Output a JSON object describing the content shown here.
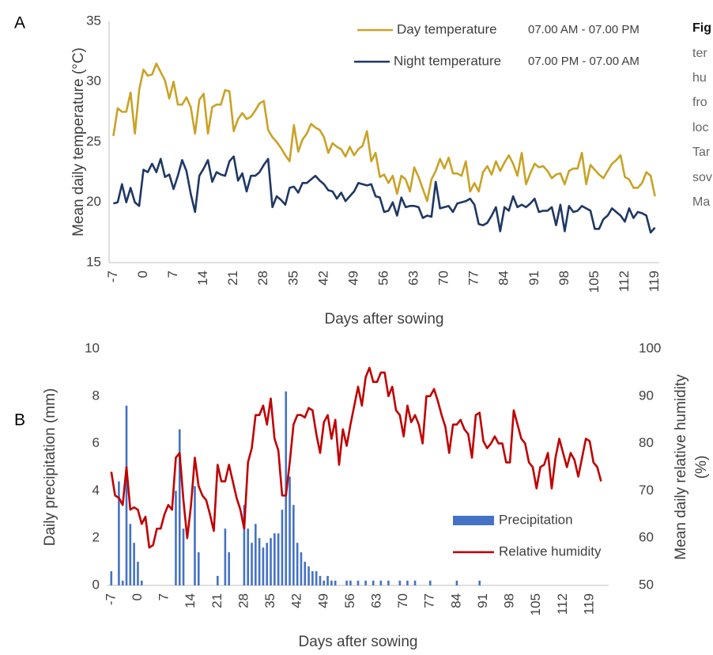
{
  "chart_data": [
    {
      "type": "line",
      "panel_label": "A",
      "y_label": "Mean daily temperature (°C)",
      "x_label": "Days after sowing",
      "xlim": [
        -8,
        120
      ],
      "ylim": [
        15,
        35
      ],
      "xticks": [
        -7,
        0,
        7,
        14,
        21,
        28,
        35,
        42,
        49,
        56,
        63,
        70,
        77,
        84,
        91,
        98,
        105,
        112,
        119
      ],
      "yticks": [
        15,
        20,
        25,
        30,
        35
      ],
      "x": [
        -7,
        -6,
        -5,
        -4,
        -3,
        -2,
        -1,
        0,
        1,
        2,
        3,
        4,
        5,
        6,
        7,
        8,
        9,
        10,
        11,
        12,
        13,
        14,
        15,
        16,
        17,
        18,
        19,
        20,
        21,
        22,
        23,
        24,
        25,
        26,
        27,
        28,
        29,
        30,
        31,
        32,
        33,
        34,
        35,
        36,
        37,
        38,
        39,
        40,
        41,
        42,
        43,
        44,
        45,
        46,
        47,
        48,
        49,
        50,
        51,
        52,
        53,
        54,
        55,
        56,
        57,
        58,
        59,
        60,
        61,
        62,
        63,
        64,
        65,
        66,
        67,
        68,
        69,
        70,
        71,
        72,
        73,
        74,
        75,
        76,
        77,
        78,
        79,
        80,
        81,
        82,
        83,
        84,
        85,
        86,
        87,
        88,
        89,
        90,
        91,
        92,
        93,
        94,
        95,
        96,
        97,
        98,
        99,
        100,
        101,
        102,
        103,
        104,
        105,
        106,
        107,
        108,
        109,
        110,
        111,
        112,
        113,
        114,
        115,
        116,
        117,
        118,
        119
      ],
      "series": [
        {
          "name": "Day temperature",
          "note": "07.00 AM - 07.00 PM",
          "color": "#c9a227",
          "type": "line",
          "values": [
            25.5,
            27.8,
            27.5,
            27.5,
            29.1,
            25.7,
            29.3,
            31,
            30.5,
            30.6,
            31.5,
            30.8,
            30.1,
            28.6,
            30,
            28.1,
            28.1,
            28.7,
            27.9,
            25.7,
            28.5,
            29,
            25.7,
            27.9,
            28.1,
            28.1,
            29.3,
            29.2,
            25.9,
            26.9,
            27.4,
            26.9,
            27.1,
            27.6,
            28.2,
            28.4,
            26,
            25.4,
            25,
            24.5,
            23.9,
            23.4,
            26.4,
            24.2,
            25.2,
            25.7,
            26.5,
            26.2,
            26,
            25.4,
            24.1,
            24.9,
            24.6,
            24.4,
            23.8,
            24.6,
            23.9,
            24.4,
            24.7,
            25.9,
            23.4,
            24.1,
            22.1,
            22.3,
            21.6,
            22.2,
            20.7,
            22.2,
            21.9,
            20.9,
            22.9,
            22.1,
            21.1,
            20.1,
            21.9,
            22.6,
            23.6,
            22.8,
            23.7,
            22.4,
            22.4,
            22.2,
            23.4,
            20.9,
            21.6,
            20.9,
            22.5,
            23,
            22.3,
            23.4,
            22.6,
            23.3,
            23.9,
            23.2,
            22.2,
            24.1,
            21.5,
            22.4,
            23.2,
            22.9,
            23,
            22.6,
            22,
            22.3,
            22.4,
            21.5,
            22.6,
            22.8,
            22.8,
            24.1,
            21.5,
            23.1,
            22.7,
            22.3,
            22,
            22.6,
            23.2,
            23.5,
            23.9,
            22.1,
            21.9,
            21.2,
            21.2,
            21.6,
            22.5,
            22.2,
            20.5
          ]
        },
        {
          "name": "Night temperature",
          "note": "07.00 PM - 07.00 AM",
          "color": "#1f3864",
          "type": "line",
          "values": [
            19.9,
            20,
            21.5,
            20,
            21.2,
            20,
            19.7,
            22.7,
            22.5,
            23.2,
            22.5,
            23.6,
            22.1,
            22.3,
            21.1,
            22.2,
            23.5,
            22.6,
            20.7,
            19.2,
            22.2,
            22.8,
            23.5,
            21.7,
            22.5,
            22.3,
            22.2,
            23.4,
            23.8,
            21.8,
            22.4,
            20.9,
            22.2,
            22.2,
            22.5,
            23.1,
            23.6,
            19.6,
            20.5,
            20.2,
            19.8,
            21.2,
            21.3,
            20.8,
            21.6,
            21.6,
            21.9,
            22.2,
            21.8,
            21.5,
            21,
            20.9,
            20.3,
            20.8,
            20.1,
            20.5,
            20.9,
            21.6,
            21.5,
            21.4,
            21.5,
            20.5,
            20.4,
            19.2,
            19.3,
            20,
            18.9,
            20.4,
            19.6,
            19.7,
            19.7,
            19.6,
            18.7,
            18.9,
            18.8,
            21.7,
            19.5,
            19.6,
            19.7,
            19.2,
            19.9,
            20,
            20.1,
            20.3,
            19.8,
            18.2,
            18.1,
            18.3,
            18.9,
            19.6,
            17.6,
            19.6,
            19.3,
            20.5,
            19.6,
            19.8,
            19.6,
            19.9,
            20.3,
            19.2,
            19.3,
            19.3,
            19.6,
            18.1,
            19.8,
            17.6,
            19.7,
            19.2,
            19.3,
            19.7,
            19.5,
            19.3,
            17.8,
            17.8,
            18.6,
            18.9,
            19.5,
            19.2,
            18.9,
            18.4,
            19.5,
            18.7,
            19.2,
            19.1,
            18.9,
            17.5,
            17.9
          ]
        }
      ]
    },
    {
      "type": "combo",
      "panel_label": "B",
      "y_label": "Daily precipitation (mm)",
      "y2_label": [
        "Mean daily relative humidity",
        "(%)"
      ],
      "x_label": "Days after sowing",
      "xlim": [
        -8,
        124
      ],
      "ylim": [
        0,
        10
      ],
      "y2lim": [
        50,
        100
      ],
      "xticks": [
        -7,
        0,
        7,
        14,
        21,
        28,
        35,
        42,
        49,
        56,
        63,
        70,
        77,
        84,
        91,
        98,
        105,
        112,
        119
      ],
      "yticks": [
        0,
        2,
        4,
        6,
        8,
        10
      ],
      "y2ticks": [
        50,
        60,
        70,
        80,
        90,
        100
      ],
      "x": [
        -7,
        -6,
        -5,
        -4,
        -3,
        -2,
        -1,
        0,
        1,
        2,
        3,
        4,
        5,
        6,
        7,
        8,
        9,
        10,
        11,
        12,
        13,
        14,
        15,
        16,
        17,
        18,
        19,
        20,
        21,
        22,
        23,
        24,
        25,
        26,
        27,
        28,
        29,
        30,
        31,
        32,
        33,
        34,
        35,
        36,
        37,
        38,
        39,
        40,
        41,
        42,
        43,
        44,
        45,
        46,
        47,
        48,
        49,
        50,
        51,
        52,
        53,
        54,
        55,
        56,
        57,
        58,
        59,
        60,
        61,
        62,
        63,
        64,
        65,
        66,
        67,
        68,
        69,
        70,
        71,
        72,
        73,
        74,
        75,
        76,
        77,
        78,
        79,
        80,
        81,
        82,
        83,
        84,
        85,
        86,
        87,
        88,
        89,
        90,
        91,
        92,
        93,
        94,
        95,
        96,
        97,
        98,
        99,
        100,
        101,
        102,
        103,
        104,
        105,
        106,
        107,
        108,
        109,
        110,
        111,
        112,
        113,
        114,
        115,
        116,
        117,
        118,
        119,
        120,
        121,
        122
      ],
      "series": [
        {
          "name": "Precipitation",
          "color": "#4472c4",
          "type": "bar",
          "values": [
            0.6,
            0,
            4.4,
            0.2,
            7.6,
            2.6,
            1.8,
            1,
            0.2,
            0,
            0,
            0,
            0,
            0,
            0,
            0,
            0,
            4,
            6.6,
            2.4,
            0,
            0,
            4.2,
            1.4,
            0,
            0,
            0,
            0,
            0.4,
            0,
            2.4,
            1.4,
            0,
            0,
            0,
            3.4,
            2.4,
            1.8,
            2.6,
            2,
            1.6,
            1.8,
            2,
            2.2,
            2.2,
            3.2,
            8.2,
            4.6,
            3.4,
            1.8,
            1.4,
            1,
            0.8,
            0.6,
            0.6,
            0.4,
            0.2,
            0.4,
            0.2,
            0.2,
            0,
            0,
            0.2,
            0.2,
            0,
            0.2,
            0,
            0.2,
            0,
            0.2,
            0,
            0.2,
            0,
            0.2,
            0,
            0,
            0.2,
            0,
            0.2,
            0,
            0.2,
            0,
            0,
            0,
            0.2,
            0,
            0,
            0,
            0,
            0,
            0,
            0.2,
            0,
            0,
            0,
            0,
            0,
            0.2,
            0,
            0,
            0,
            0,
            0,
            0,
            0,
            0,
            0,
            0,
            0,
            0,
            0,
            0,
            0,
            0,
            0,
            0,
            0,
            0,
            0,
            0,
            0,
            0,
            0,
            0,
            0,
            0,
            0,
            0,
            0,
            0
          ]
        },
        {
          "name": "Relative humidity",
          "color": "#c00000",
          "type": "line",
          "axis": "y2",
          "values": [
            74,
            69,
            68.5,
            67,
            75,
            66,
            66.5,
            66,
            63,
            64.5,
            58,
            58.5,
            62,
            62,
            65,
            67,
            66,
            77,
            78,
            68,
            60,
            67,
            77,
            71,
            69,
            68,
            65,
            61.5,
            75.5,
            72,
            72,
            75.5,
            72,
            68.5,
            66,
            62,
            76,
            79,
            86,
            86,
            88,
            84,
            89.5,
            81,
            78.5,
            69,
            69,
            76,
            84,
            86,
            86,
            85.5,
            87.5,
            87,
            82,
            78,
            84.5,
            86,
            81,
            85,
            75.5,
            83,
            79.5,
            84,
            88,
            92,
            88,
            94,
            96,
            93,
            93,
            95,
            95,
            90,
            92,
            87,
            86,
            81.5,
            88,
            84.5,
            86,
            84,
            80,
            90,
            90,
            91.5,
            89,
            86,
            83.5,
            78,
            84,
            84,
            85,
            83,
            82,
            77,
            86,
            86.5,
            80.5,
            79,
            80,
            81.5,
            80,
            80,
            76,
            76,
            87,
            84,
            81,
            80,
            76,
            75,
            70.5,
            75,
            75.5,
            78,
            70.5,
            77,
            81,
            78,
            75,
            78,
            76.5,
            73,
            77,
            81,
            80.5,
            76,
            75,
            72
          ]
        }
      ]
    }
  ],
  "caption_lines": [
    "Fig",
    "ter",
    "hu",
    "fro",
    "loc",
    "Tar",
    "sov",
    "Ma"
  ]
}
